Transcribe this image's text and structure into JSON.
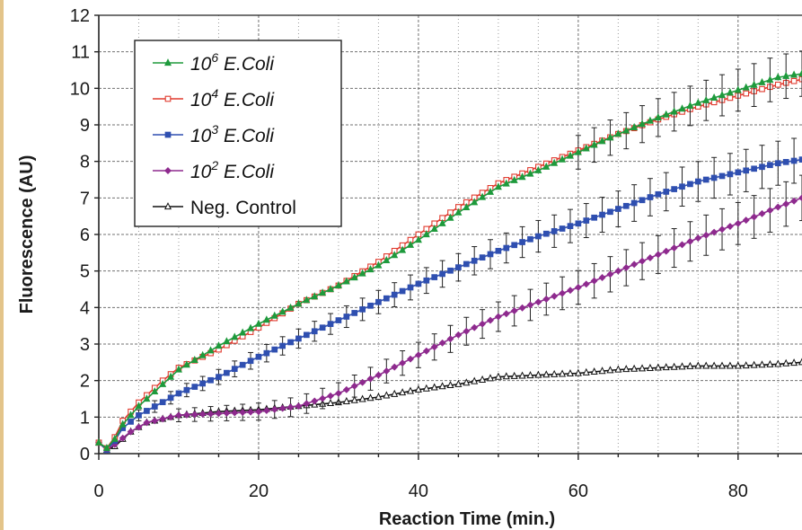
{
  "chart_data": {
    "type": "line",
    "xlabel": "Reaction Time (min.)",
    "ylabel": "Fluorescence (AU)",
    "xlim": [
      0,
      88
    ],
    "ylim": [
      0,
      12
    ],
    "x_ticks": [
      0,
      20,
      40,
      60,
      80
    ],
    "y_ticks": [
      0,
      1,
      2,
      3,
      4,
      5,
      6,
      7,
      8,
      9,
      10,
      11,
      12
    ],
    "grid": true,
    "legend_position": "top-left",
    "series": [
      {
        "name_base": "10",
        "name_exp": "6",
        "name_suffix": " E.Coli",
        "color": "#1e9a3c",
        "marker": "filled-triangle",
        "points": [
          [
            0,
            0.3
          ],
          [
            1,
            0.15
          ],
          [
            2,
            0.4
          ],
          [
            3,
            0.8
          ],
          [
            5,
            1.3
          ],
          [
            8,
            1.9
          ],
          [
            10,
            2.3
          ],
          [
            15,
            2.95
          ],
          [
            20,
            3.55
          ],
          [
            25,
            4.1
          ],
          [
            30,
            4.6
          ],
          [
            35,
            5.15
          ],
          [
            40,
            5.85
          ],
          [
            45,
            6.6
          ],
          [
            50,
            7.3
          ],
          [
            55,
            7.75
          ],
          [
            60,
            8.25
          ],
          [
            65,
            8.75
          ],
          [
            70,
            9.2
          ],
          [
            75,
            9.6
          ],
          [
            80,
            9.95
          ],
          [
            85,
            10.3
          ],
          [
            88,
            10.4
          ]
        ],
        "error_bars": true,
        "error_from_x": 60
      },
      {
        "name_base": "10",
        "name_exp": "4",
        "name_suffix": " E.Coli",
        "color": "#e03a2e",
        "marker": "open-square",
        "points": [
          [
            0,
            0.3
          ],
          [
            1,
            0.15
          ],
          [
            2,
            0.45
          ],
          [
            3,
            0.9
          ],
          [
            5,
            1.4
          ],
          [
            8,
            2.0
          ],
          [
            10,
            2.35
          ],
          [
            15,
            2.85
          ],
          [
            20,
            3.45
          ],
          [
            25,
            4.1
          ],
          [
            30,
            4.6
          ],
          [
            35,
            5.25
          ],
          [
            40,
            6.0
          ],
          [
            45,
            6.75
          ],
          [
            50,
            7.4
          ],
          [
            55,
            7.85
          ],
          [
            60,
            8.3
          ],
          [
            65,
            8.75
          ],
          [
            70,
            9.15
          ],
          [
            75,
            9.5
          ],
          [
            80,
            9.8
          ],
          [
            85,
            10.1
          ],
          [
            88,
            10.25
          ]
        ],
        "error_bars": false
      },
      {
        "name_base": "10",
        "name_exp": "3",
        "name_suffix": " E.Coli",
        "color": "#2f4fb0",
        "marker": "filled-square",
        "points": [
          [
            0,
            0.3
          ],
          [
            1,
            0.1
          ],
          [
            2,
            0.35
          ],
          [
            3,
            0.7
          ],
          [
            5,
            1.05
          ],
          [
            10,
            1.65
          ],
          [
            15,
            2.1
          ],
          [
            20,
            2.65
          ],
          [
            25,
            3.15
          ],
          [
            30,
            3.65
          ],
          [
            35,
            4.15
          ],
          [
            40,
            4.65
          ],
          [
            45,
            5.1
          ],
          [
            50,
            5.55
          ],
          [
            55,
            5.95
          ],
          [
            60,
            6.3
          ],
          [
            65,
            6.7
          ],
          [
            70,
            7.1
          ],
          [
            75,
            7.45
          ],
          [
            80,
            7.7
          ],
          [
            85,
            7.95
          ],
          [
            88,
            8.05
          ]
        ],
        "error_bars": true,
        "error_from_x": 5
      },
      {
        "name_base": "10",
        "name_exp": "2",
        "name_suffix": " E.Coli",
        "color": "#8e2a8e",
        "marker": "filled-diamond",
        "points": [
          [
            0,
            0.3
          ],
          [
            1,
            0.1
          ],
          [
            2,
            0.25
          ],
          [
            4,
            0.6
          ],
          [
            6,
            0.85
          ],
          [
            10,
            1.05
          ],
          [
            15,
            1.1
          ],
          [
            20,
            1.15
          ],
          [
            25,
            1.3
          ],
          [
            30,
            1.65
          ],
          [
            35,
            2.15
          ],
          [
            40,
            2.7
          ],
          [
            45,
            3.25
          ],
          [
            50,
            3.75
          ],
          [
            55,
            4.15
          ],
          [
            60,
            4.55
          ],
          [
            65,
            5.0
          ],
          [
            70,
            5.45
          ],
          [
            75,
            5.9
          ],
          [
            80,
            6.3
          ],
          [
            85,
            6.75
          ],
          [
            88,
            7.0
          ]
        ],
        "error_bars": true,
        "error_from_x": 10
      },
      {
        "name": "Neg. Control",
        "color": "#111111",
        "marker": "open-triangle",
        "points": [
          [
            0,
            0.3
          ],
          [
            1,
            0.1
          ],
          [
            2,
            0.2
          ],
          [
            4,
            0.6
          ],
          [
            6,
            0.85
          ],
          [
            10,
            1.05
          ],
          [
            15,
            1.15
          ],
          [
            20,
            1.2
          ],
          [
            25,
            1.3
          ],
          [
            30,
            1.4
          ],
          [
            35,
            1.55
          ],
          [
            40,
            1.75
          ],
          [
            45,
            1.9
          ],
          [
            50,
            2.1
          ],
          [
            55,
            2.15
          ],
          [
            60,
            2.2
          ],
          [
            65,
            2.3
          ],
          [
            70,
            2.35
          ],
          [
            75,
            2.4
          ],
          [
            80,
            2.4
          ],
          [
            85,
            2.45
          ],
          [
            88,
            2.5
          ]
        ],
        "error_bars": false
      }
    ]
  }
}
